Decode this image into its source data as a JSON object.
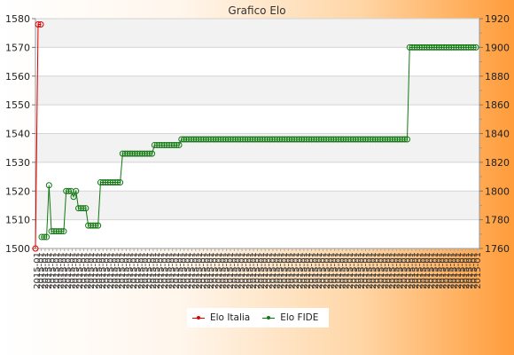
{
  "chart_data": {
    "type": "line",
    "title": "Grafico Elo",
    "ylim_left": [
      1500,
      1580
    ],
    "ylim_right": [
      1760,
      1920
    ],
    "yticks_left": [
      "1500",
      "1510",
      "1520",
      "1530",
      "1540",
      "1550",
      "1560",
      "1570",
      "1580"
    ],
    "yticks_right": [
      "1760",
      "1780",
      "1800",
      "1820",
      "1840",
      "1860",
      "1880",
      "1900",
      "1920"
    ],
    "grid": true,
    "x_tick_label_pattern": "2015-01",
    "x_tick_count": 115,
    "legend_position": "bottom-center",
    "series": [
      {
        "name": "Elo Italia",
        "axis": "left",
        "color": "#dd0000",
        "values": [
          1500,
          1578,
          1578
        ]
      },
      {
        "name": "Elo FIDE",
        "axis": "right",
        "color": "#117711",
        "values": [
          1768,
          1768,
          1768,
          1804,
          1772,
          1772,
          1772,
          1772,
          1772,
          1772,
          1800,
          1800,
          1800,
          1796,
          1800,
          1788,
          1788,
          1788,
          1788,
          1776,
          1776,
          1776,
          1776,
          1776,
          1806,
          1806,
          1806,
          1806,
          1806,
          1806,
          1806,
          1806,
          1806,
          1826,
          1826,
          1826,
          1826,
          1826,
          1826,
          1826,
          1826,
          1826,
          1826,
          1826,
          1826,
          1826,
          1832,
          1832,
          1832,
          1832,
          1832,
          1832,
          1832,
          1832,
          1832,
          1832,
          1832,
          1836,
          1836,
          1836,
          1836,
          1836,
          1836,
          1836,
          1836,
          1836,
          1836,
          1836,
          1836,
          1836,
          1836,
          1836,
          1836,
          1836,
          1836,
          1836,
          1836,
          1836,
          1836,
          1836,
          1836,
          1836,
          1836,
          1836,
          1836,
          1836,
          1836,
          1836,
          1836,
          1836,
          1836,
          1836,
          1836,
          1836,
          1836,
          1836,
          1836,
          1836,
          1836,
          1836,
          1836,
          1836,
          1836,
          1836,
          1836,
          1836,
          1836,
          1836,
          1836,
          1836,
          1836,
          1836,
          1836,
          1836,
          1836,
          1836,
          1836,
          1836,
          1836,
          1836,
          1836,
          1836,
          1836,
          1836,
          1836,
          1836,
          1836,
          1836,
          1836,
          1836,
          1836,
          1836,
          1836,
          1836,
          1836,
          1836,
          1836,
          1836,
          1836,
          1836,
          1836,
          1836,
          1836,
          1836,
          1836,
          1836,
          1836,
          1836,
          1836,
          1836,
          1900,
          1900,
          1900,
          1900,
          1900,
          1900,
          1900,
          1900,
          1900,
          1900,
          1900,
          1900,
          1900,
          1900,
          1900,
          1900,
          1900,
          1900,
          1900,
          1900,
          1900,
          1900,
          1900,
          1900,
          1900,
          1900,
          1900,
          1900
        ]
      }
    ]
  }
}
